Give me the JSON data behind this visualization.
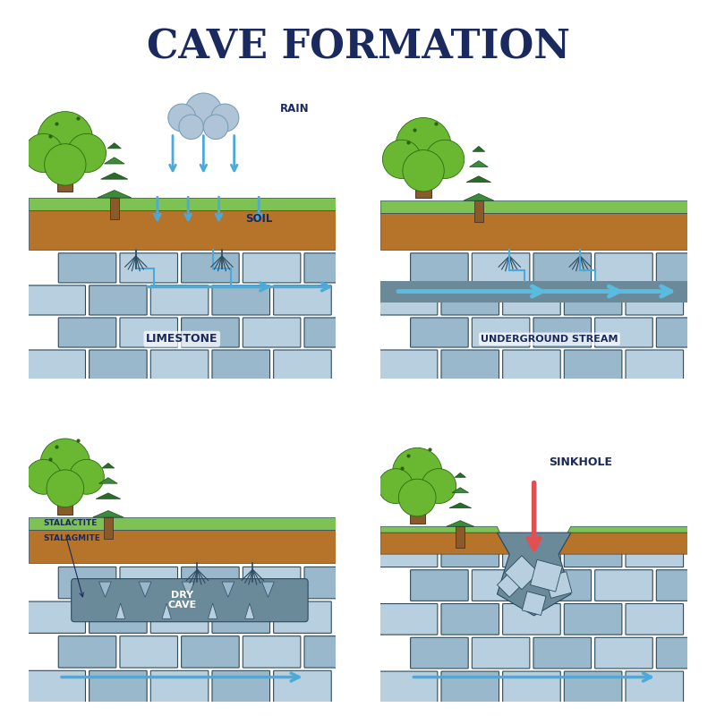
{
  "title": "CAVE FORMATION",
  "title_color": "#1a2a5e",
  "title_fontsize": 32,
  "bg_color": "#ffffff",
  "panels": [
    {
      "label": "LIMESTONE",
      "sublabel": "SOIL",
      "extra": "RAIN",
      "type": "rain"
    },
    {
      "label": "UNDERGROUND STREAM",
      "type": "stream"
    },
    {
      "label": "DRY CAVE",
      "sublabel": "STALACTITE\nSTALAGMITE",
      "type": "cave"
    },
    {
      "label": "SINKHOLE",
      "type": "sinkhole"
    }
  ],
  "colors": {
    "grass_top": "#7dc253",
    "grass_mid": "#8dc44a",
    "soil": "#b5742a",
    "soil_dark": "#c4832e",
    "limestone_light": "#b8cfe0",
    "limestone_mid": "#9ab8cc",
    "limestone_dark": "#7a9fb5",
    "limestone_line": "#3a5a72",
    "block_stroke": "#2d4a5e",
    "water_arrow": "#4aabdb",
    "water_arrow_dark": "#2e8bbf",
    "rain_arrow": "#4aabdb",
    "cloud": "#b0c4d8",
    "cloud_stroke": "#7a9fb5",
    "tree_leaf": "#6ab832",
    "tree_trunk": "#8b5a2b",
    "pine_green": "#3a8c3a",
    "pine_dark": "#2a6a2a",
    "text_dark": "#1a2a5e",
    "text_white": "#ffffff",
    "sinkhole_arrow": "#e05050",
    "cave_dark": "#6a8a9a",
    "root_color": "#2d4a5e",
    "stream_channel": "#5abbe0"
  }
}
